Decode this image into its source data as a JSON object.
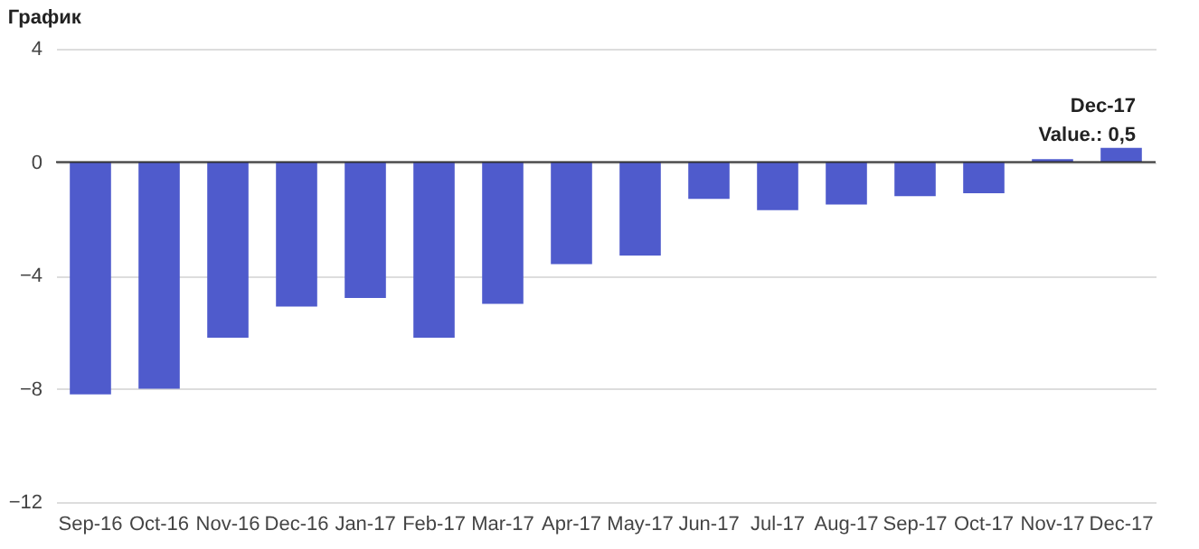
{
  "chart_data": {
    "type": "bar",
    "title": "График",
    "categories": [
      "Sep-16",
      "Oct-16",
      "Nov-16",
      "Dec-16",
      "Jan-17",
      "Feb-17",
      "Mar-17",
      "Apr-17",
      "May-17",
      "Jun-17",
      "Jul-17",
      "Aug-17",
      "Sep-17",
      "Oct-17",
      "Nov-17",
      "Dec-17"
    ],
    "values": [
      -8.2,
      -8.0,
      -6.2,
      -5.1,
      -4.8,
      -6.2,
      -5.0,
      -3.6,
      -3.3,
      -1.3,
      -1.7,
      -1.5,
      -1.2,
      -1.1,
      0.1,
      0.5
    ],
    "color": "#4f5bcc",
    "ylim": [
      -12,
      4
    ],
    "yticks": [
      -12,
      -8,
      -4,
      0,
      4
    ],
    "grid": "y",
    "annotations": [
      {
        "text": "Dec-17\nValue.: 0,5",
        "x": "Dec-17",
        "y": 0.5
      }
    ]
  }
}
